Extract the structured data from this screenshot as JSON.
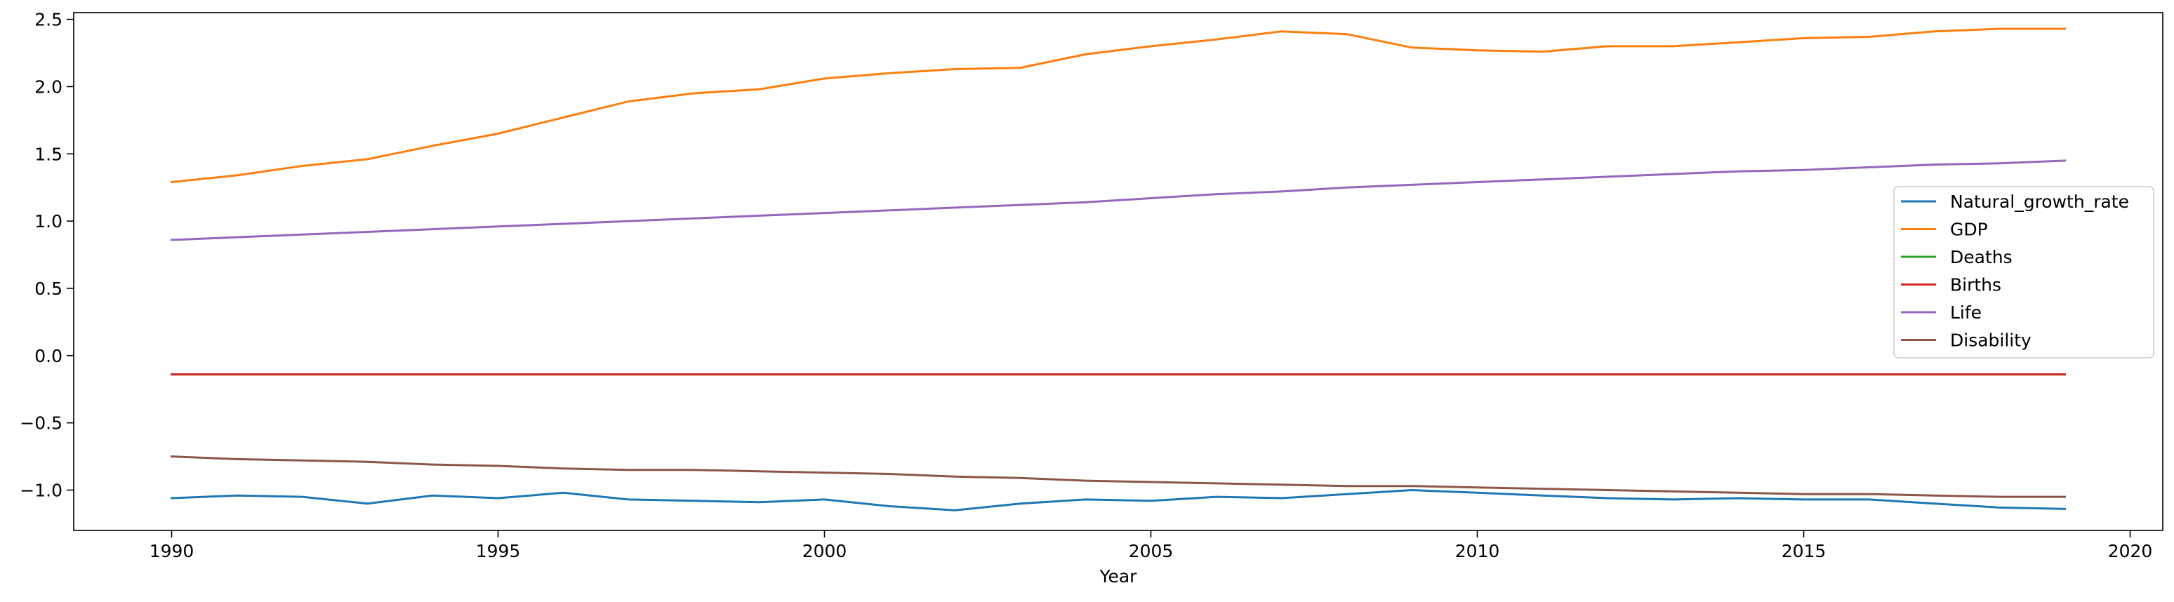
{
  "chart_data": {
    "type": "line",
    "title": "",
    "xlabel": "Year",
    "ylabel": "",
    "xlim": [
      1988.5,
      2020.5
    ],
    "ylim": [
      -1.3,
      2.55
    ],
    "x_ticks": [
      1990,
      1995,
      2000,
      2005,
      2010,
      2015,
      2020
    ],
    "y_ticks": [
      -1.0,
      -0.5,
      0.0,
      0.5,
      1.0,
      1.5,
      2.0,
      2.5
    ],
    "x_tick_labels": [
      "1990",
      "1995",
      "2000",
      "2005",
      "2010",
      "2015",
      "2020"
    ],
    "y_tick_labels": [
      "−1.0",
      "−0.5",
      "0.0",
      "0.5",
      "1.0",
      "1.5",
      "2.0",
      "2.5"
    ],
    "grid": false,
    "legend_position": "center-right",
    "x": [
      1990,
      1991,
      1992,
      1993,
      1994,
      1995,
      1996,
      1997,
      1998,
      1999,
      2000,
      2001,
      2002,
      2003,
      2004,
      2005,
      2006,
      2007,
      2008,
      2009,
      2010,
      2011,
      2012,
      2013,
      2014,
      2015,
      2016,
      2017,
      2018,
      2019
    ],
    "series": [
      {
        "name": "Natural_growth_rate",
        "color": "#1f77b4",
        "values": [
          -1.06,
          -1.04,
          -1.05,
          -1.1,
          -1.04,
          -1.06,
          -1.02,
          -1.07,
          -1.08,
          -1.09,
          -1.07,
          -1.12,
          -1.15,
          -1.1,
          -1.07,
          -1.08,
          -1.05,
          -1.06,
          -1.03,
          -1.0,
          -1.02,
          -1.04,
          -1.06,
          -1.07,
          -1.06,
          -1.07,
          -1.07,
          -1.1,
          -1.13,
          -1.14
        ]
      },
      {
        "name": "GDP",
        "color": "#ff7f0e",
        "values": [
          1.29,
          1.34,
          1.41,
          1.46,
          1.56,
          1.65,
          1.77,
          1.89,
          1.95,
          1.98,
          2.06,
          2.1,
          2.13,
          2.14,
          2.24,
          2.3,
          2.35,
          2.41,
          2.39,
          2.29,
          2.27,
          2.26,
          2.3,
          2.3,
          2.33,
          2.36,
          2.37,
          2.41,
          2.43,
          2.43
        ]
      },
      {
        "name": "Deaths",
        "color": "#2ca02c",
        "values": [
          -0.14,
          -0.14,
          -0.14,
          -0.14,
          -0.14,
          -0.14,
          -0.14,
          -0.14,
          -0.14,
          -0.14,
          -0.14,
          -0.14,
          -0.14,
          -0.14,
          -0.14,
          -0.14,
          -0.14,
          -0.14,
          -0.14,
          -0.14,
          -0.14,
          -0.14,
          -0.14,
          -0.14,
          -0.14,
          -0.14,
          -0.14,
          -0.14,
          -0.14,
          -0.14
        ]
      },
      {
        "name": "Births",
        "color": "#d62728",
        "values": [
          -0.14,
          -0.14,
          -0.14,
          -0.14,
          -0.14,
          -0.14,
          -0.14,
          -0.14,
          -0.14,
          -0.14,
          -0.14,
          -0.14,
          -0.14,
          -0.14,
          -0.14,
          -0.14,
          -0.14,
          -0.14,
          -0.14,
          -0.14,
          -0.14,
          -0.14,
          -0.14,
          -0.14,
          -0.14,
          -0.14,
          -0.14,
          -0.14,
          -0.14,
          -0.14
        ]
      },
      {
        "name": "Life",
        "color": "#9467bd",
        "values": [
          0.86,
          0.88,
          0.9,
          0.92,
          0.94,
          0.96,
          0.98,
          1.0,
          1.02,
          1.04,
          1.06,
          1.08,
          1.1,
          1.12,
          1.14,
          1.17,
          1.2,
          1.22,
          1.25,
          1.27,
          1.29,
          1.31,
          1.33,
          1.35,
          1.37,
          1.38,
          1.4,
          1.42,
          1.43,
          1.45
        ]
      },
      {
        "name": "Disability",
        "color": "#8c564b",
        "values": [
          -0.75,
          -0.77,
          -0.78,
          -0.79,
          -0.81,
          -0.82,
          -0.84,
          -0.85,
          -0.85,
          -0.86,
          -0.87,
          -0.88,
          -0.9,
          -0.91,
          -0.93,
          -0.94,
          -0.95,
          -0.96,
          -0.97,
          -0.97,
          -0.98,
          -0.99,
          -1.0,
          -1.01,
          -1.02,
          -1.03,
          -1.03,
          -1.04,
          -1.05,
          -1.05
        ]
      }
    ]
  }
}
